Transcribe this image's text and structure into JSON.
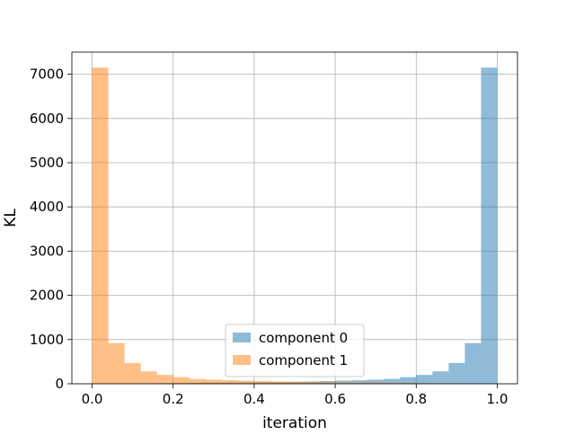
{
  "chart_data": {
    "type": "bar",
    "subtype": "histogram",
    "xlabel": "iteration",
    "ylabel": "KL",
    "xlim": [
      -0.05,
      1.05
    ],
    "ylim": [
      0,
      7500
    ],
    "xticks": [
      0.0,
      0.2,
      0.4,
      0.6,
      0.8,
      1.0
    ],
    "xtick_labels": [
      "0.0",
      "0.2",
      "0.4",
      "0.6",
      "0.8",
      "1.0"
    ],
    "yticks": [
      0,
      1000,
      2000,
      3000,
      4000,
      5000,
      6000,
      7000
    ],
    "ytick_labels": [
      "0",
      "1000",
      "2000",
      "3000",
      "4000",
      "5000",
      "6000",
      "7000"
    ],
    "grid": true,
    "legend_position": "lower-center",
    "bin_edges": [
      0.0,
      0.04,
      0.08,
      0.12,
      0.16,
      0.2,
      0.24,
      0.28,
      0.32,
      0.36,
      0.4,
      0.44,
      0.48,
      0.52,
      0.56,
      0.6,
      0.64,
      0.68,
      0.72,
      0.76,
      0.8,
      0.84,
      0.88,
      0.92,
      0.96,
      1.0
    ],
    "series": [
      {
        "name": "component 0",
        "color": "#1f77b4",
        "alpha": 0.5,
        "values": [
          2,
          5,
          8,
          10,
          15,
          18,
          22,
          25,
          28,
          32,
          35,
          40,
          45,
          52,
          60,
          70,
          80,
          92,
          110,
          150,
          200,
          280,
          470,
          920,
          7150
        ]
      },
      {
        "name": "component 1",
        "color": "#ff7f0e",
        "alpha": 0.5,
        "values": [
          7150,
          920,
          470,
          280,
          200,
          150,
          110,
          92,
          80,
          70,
          60,
          52,
          45,
          40,
          35,
          32,
          28,
          25,
          22,
          18,
          15,
          10,
          8,
          5,
          2
        ]
      }
    ]
  }
}
